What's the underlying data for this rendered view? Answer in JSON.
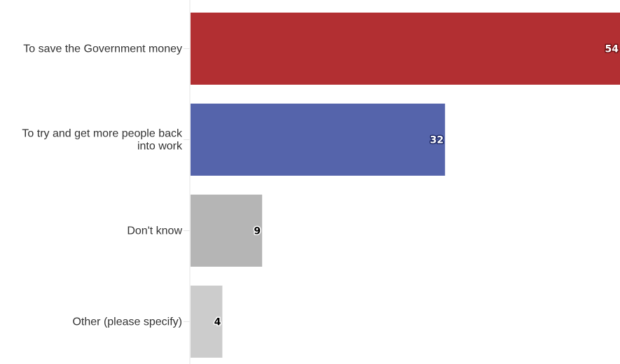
{
  "chart_data": {
    "type": "bar",
    "orientation": "horizontal",
    "categories": [
      "To save the Government money",
      "To try and get more people back into work",
      "Don't know",
      "Other (please specify)"
    ],
    "values": [
      54,
      32,
      9,
      4
    ],
    "value_labels": [
      "54",
      "32",
      "9",
      "4"
    ],
    "colors": [
      "#b22f32",
      "#5564ab",
      "#b5b5b5",
      "#cccccc"
    ],
    "label_colors": [
      "#ffffff",
      "#ffffff",
      "#000000",
      "#000000"
    ],
    "label_outline_colors": [
      "#6e0f12",
      "#1f2a66",
      "#ffffff",
      "#ffffff"
    ],
    "title": "",
    "xlabel": "",
    "ylabel": "",
    "xlim": [
      0,
      54
    ],
    "grid": false,
    "legend": "none"
  }
}
